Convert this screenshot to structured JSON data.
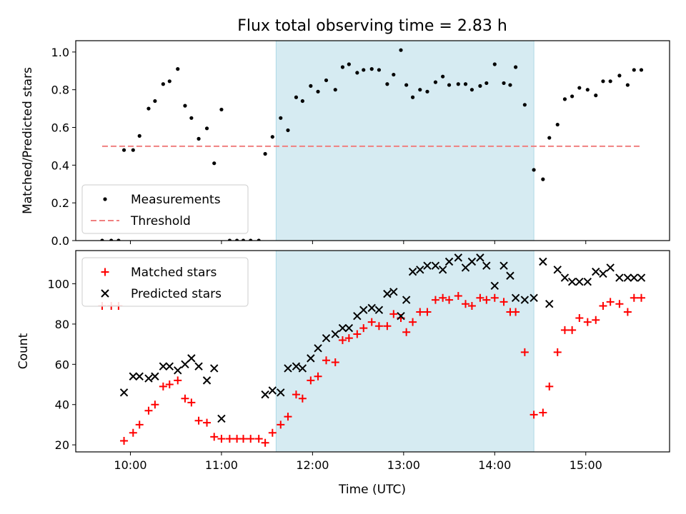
{
  "chart_data": {
    "title": "Flux total observing time = 2.83 h",
    "xlabel": "Time (UTC)",
    "x_unit": "hours UTC",
    "xlim": [
      9.4,
      15.92
    ],
    "x_ticks": [
      {
        "value": 10,
        "label": "10:00"
      },
      {
        "value": 11,
        "label": "11:00"
      },
      {
        "value": 12,
        "label": "12:00"
      },
      {
        "value": 13,
        "label": "13:00"
      },
      {
        "value": 14,
        "label": "14:00"
      },
      {
        "value": 15,
        "label": "15:00"
      }
    ],
    "shaded_span": {
      "x_start": 11.6,
      "x_end": 14.43,
      "color": "#add8e6"
    },
    "panels": [
      {
        "type": "scatter",
        "ylabel": "Matched/Predicted stars",
        "ylim": [
          0,
          1.06
        ],
        "y_ticks": [
          {
            "value": 0.0,
            "label": "0.0"
          },
          {
            "value": 0.2,
            "label": "0.2"
          },
          {
            "value": 0.4,
            "label": "0.4"
          },
          {
            "value": 0.6,
            "label": "0.6"
          },
          {
            "value": 0.8,
            "label": "0.8"
          },
          {
            "value": 1.0,
            "label": "1.0"
          }
        ],
        "legend_position": "lower-left",
        "series": [
          {
            "name": "Measurements",
            "marker": "dot",
            "color": "#000000",
            "x": [
              9.69,
              9.79,
              9.87,
              9.93,
              10.03,
              10.1,
              10.2,
              10.27,
              10.36,
              10.43,
              10.52,
              10.6,
              10.67,
              10.75,
              10.84,
              10.92,
              11.0,
              11.09,
              11.17,
              11.24,
              11.32,
              11.41,
              11.48,
              11.56,
              11.65,
              11.73,
              11.82,
              11.89,
              11.98,
              12.06,
              12.15,
              12.25,
              12.33,
              12.4,
              12.49,
              12.56,
              12.65,
              12.73,
              12.82,
              12.89,
              12.97,
              13.03,
              13.1,
              13.18,
              13.26,
              13.35,
              13.43,
              13.5,
              13.6,
              13.68,
              13.75,
              13.84,
              13.91,
              14.0,
              14.1,
              14.17,
              14.23,
              14.33,
              14.43,
              14.53,
              14.6,
              14.69,
              14.77,
              14.85,
              14.93,
              15.02,
              15.11,
              15.19,
              15.27,
              15.37,
              15.46,
              15.53,
              15.61
            ],
            "y": [
              0.0,
              0.0,
              0.0,
              0.48,
              0.48,
              0.555,
              0.7,
              0.74,
              0.83,
              0.845,
              0.91,
              0.715,
              0.65,
              0.54,
              0.595,
              0.41,
              0.695,
              0.0,
              0.0,
              0.0,
              0.0,
              0.0,
              0.46,
              0.55,
              0.65,
              0.585,
              0.76,
              0.74,
              0.82,
              0.79,
              0.85,
              0.8,
              0.92,
              0.935,
              0.89,
              0.905,
              0.91,
              0.905,
              0.83,
              0.88,
              1.01,
              0.825,
              0.76,
              0.8,
              0.79,
              0.84,
              0.87,
              0.825,
              0.83,
              0.83,
              0.8,
              0.82,
              0.835,
              0.935,
              0.835,
              0.825,
              0.92,
              0.72,
              0.375,
              0.325,
              0.545,
              0.615,
              0.75,
              0.765,
              0.81,
              0.8,
              0.77,
              0.845,
              0.845,
              0.875,
              0.825,
              0.905,
              0.905
            ]
          },
          {
            "name": "Threshold",
            "type": "line",
            "style": "dashed",
            "color": "#f08080",
            "x": [
              9.69,
              15.61
            ],
            "y": [
              0.5,
              0.5
            ]
          }
        ]
      },
      {
        "type": "scatter",
        "ylabel": "Count",
        "ylim": [
          16.5,
          116.5
        ],
        "y_ticks": [
          {
            "value": 20,
            "label": "20"
          },
          {
            "value": 40,
            "label": "40"
          },
          {
            "value": 60,
            "label": "60"
          },
          {
            "value": 80,
            "label": "80"
          },
          {
            "value": 100,
            "label": "100"
          }
        ],
        "legend_position": "upper-left",
        "series": [
          {
            "name": "Matched stars",
            "marker": "plus",
            "color": "#ff0000",
            "x": [
              9.69,
              9.79,
              9.87,
              9.93,
              10.03,
              10.1,
              10.2,
              10.27,
              10.36,
              10.43,
              10.52,
              10.6,
              10.67,
              10.75,
              10.84,
              10.92,
              11.0,
              11.09,
              11.17,
              11.24,
              11.32,
              11.41,
              11.48,
              11.56,
              11.65,
              11.73,
              11.82,
              11.89,
              11.98,
              12.06,
              12.15,
              12.25,
              12.33,
              12.4,
              12.49,
              12.56,
              12.65,
              12.73,
              12.82,
              12.89,
              12.97,
              13.03,
              13.1,
              13.18,
              13.26,
              13.35,
              13.43,
              13.5,
              13.6,
              13.68,
              13.75,
              13.84,
              13.91,
              14.0,
              14.1,
              14.17,
              14.23,
              14.33,
              14.43,
              14.53,
              14.6,
              14.69,
              14.77,
              14.85,
              14.93,
              15.02,
              15.11,
              15.19,
              15.27,
              15.37,
              15.46,
              15.53,
              15.61
            ],
            "y": [
              89,
              89,
              89,
              22,
              26,
              30,
              37,
              40,
              49,
              50,
              52,
              43,
              41,
              32,
              31,
              24,
              23,
              23,
              23,
              23,
              23,
              23,
              21,
              26,
              30,
              34,
              45,
              43,
              52,
              54,
              62,
              61,
              72,
              73,
              75,
              78,
              81,
              79,
              79,
              85,
              83,
              76,
              81,
              86,
              86,
              92,
              93,
              92,
              94,
              90,
              89,
              93,
              92,
              93,
              91,
              86,
              86,
              66,
              35,
              36,
              49,
              66,
              77,
              77,
              83,
              81,
              82,
              89,
              91,
              90,
              86,
              93,
              93
            ]
          },
          {
            "name": "Predicted stars",
            "marker": "x",
            "color": "#000000",
            "x": [
              9.93,
              10.03,
              10.1,
              10.2,
              10.27,
              10.36,
              10.43,
              10.52,
              10.6,
              10.67,
              10.75,
              10.84,
              10.92,
              11.0,
              11.48,
              11.56,
              11.65,
              11.73,
              11.82,
              11.89,
              11.98,
              12.06,
              12.15,
              12.25,
              12.33,
              12.4,
              12.49,
              12.56,
              12.65,
              12.73,
              12.82,
              12.89,
              12.97,
              13.03,
              13.1,
              13.18,
              13.26,
              13.35,
              13.43,
              13.5,
              13.6,
              13.68,
              13.75,
              13.84,
              13.91,
              14.0,
              14.1,
              14.17,
              14.23,
              14.33,
              14.43,
              14.53,
              14.6,
              14.69,
              14.77,
              14.85,
              14.93,
              15.02,
              15.11,
              15.19,
              15.27,
              15.37,
              15.46,
              15.53,
              15.61
            ],
            "y": [
              46,
              54,
              54,
              53,
              54,
              59,
              59,
              57,
              60,
              63,
              59,
              52,
              58,
              33,
              45,
              47,
              46,
              58,
              59,
              58,
              63,
              68,
              73,
              75,
              78,
              78,
              84,
              87,
              88,
              87,
              95,
              96,
              84,
              92,
              106,
              107,
              109,
              109,
              107,
              111,
              113,
              108,
              111,
              113,
              109,
              99,
              109,
              104,
              93,
              92,
              93,
              111,
              90,
              107,
              103,
              101,
              101,
              101,
              106,
              105,
              108,
              103,
              103,
              103,
              103
            ]
          }
        ]
      }
    ]
  }
}
